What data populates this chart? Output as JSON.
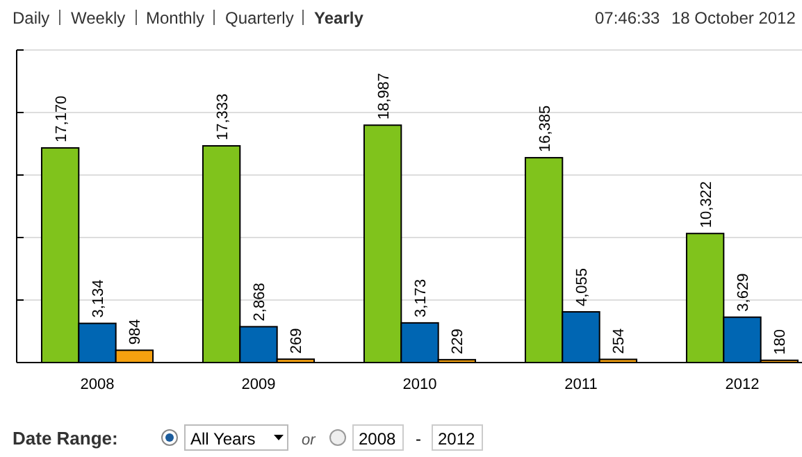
{
  "chart_data": {
    "type": "bar",
    "categories": [
      "2008",
      "2009",
      "2010",
      "2011",
      "2012"
    ],
    "series": [
      {
        "color": "#80c31c",
        "values": [
          17170,
          17333,
          18987,
          16385,
          10322
        ],
        "value_labels": [
          "17,170",
          "17,333",
          "18,987",
          "16,385",
          "10,322"
        ]
      },
      {
        "color": "#0066b3",
        "values": [
          3134,
          2868,
          3173,
          4055,
          3629
        ],
        "value_labels": [
          "3,134",
          "2,868",
          "3,173",
          "4,055",
          "3,629"
        ]
      },
      {
        "color": "#f5a00f",
        "values": [
          984,
          269,
          229,
          254,
          180
        ],
        "value_labels": [
          "984",
          "269",
          "229",
          "254",
          "180"
        ]
      }
    ],
    "ylim": [
      0,
      25000
    ],
    "yticks": [
      {
        "value": 0,
        "label": null
      },
      {
        "value": 5000,
        "label": null
      },
      {
        "value": 10000,
        "label": null
      },
      {
        "value": 15000,
        "label": null
      },
      {
        "value": 20000,
        "label": null
      },
      {
        "value": 25000,
        "label": null
      }
    ],
    "tick_labels": "x",
    "grid": "y",
    "annotations": [
      "Daily",
      "Weekly",
      "Monthly",
      "Quarterly",
      "Yearly",
      "07:46:33",
      "18 October 2012",
      "Date Range:",
      "All Years",
      "or",
      "2008",
      "-",
      "2012"
    ]
  }
}
